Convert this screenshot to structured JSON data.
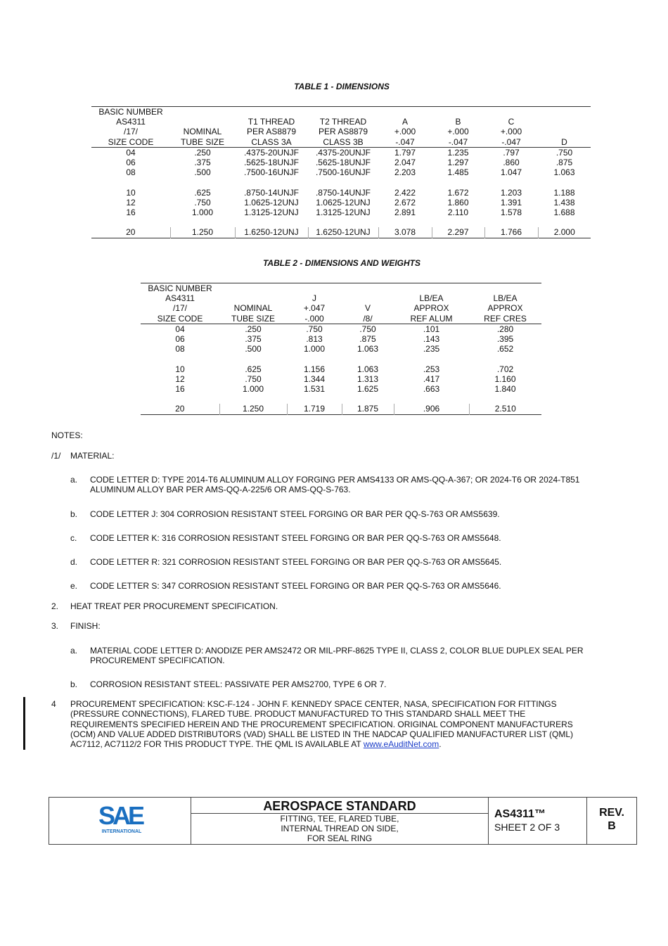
{
  "table1": {
    "title": "TABLE 1 - DIMENSIONS",
    "headers": [
      [
        "BASIC NUMBER",
        "",
        "",
        "",
        "",
        "",
        "",
        ""
      ],
      [
        "AS4311",
        "",
        "T1 THREAD",
        "T2 THREAD",
        "A",
        "B",
        "C",
        ""
      ],
      [
        "/17/",
        "NOMINAL",
        "PER AS8879",
        "PER AS8879",
        "+.000",
        "+.000",
        "+.000",
        ""
      ],
      [
        "SIZE CODE",
        "TUBE SIZE",
        "CLASS 3A",
        "CLASS 3B",
        "-.047",
        "-.047",
        "-.047",
        "D"
      ]
    ],
    "rows": [
      [
        "04",
        ".250",
        ".4375-20UNJF",
        ".4375-20UNJF",
        "1.797",
        "1.235",
        ".797",
        ".750"
      ],
      [
        "06",
        ".375",
        ".5625-18UNJF",
        ".5625-18UNJF",
        "2.047",
        "1.297",
        ".860",
        ".875"
      ],
      [
        "08",
        ".500",
        ".7500-16UNJF",
        ".7500-16UNJF",
        "2.203",
        "1.485",
        "1.047",
        "1.063"
      ],
      null,
      [
        "10",
        ".625",
        ".8750-14UNJF",
        ".8750-14UNJF",
        "2.422",
        "1.672",
        "1.203",
        "1.188"
      ],
      [
        "12",
        ".750",
        "1.0625-12UNJ",
        "1.0625-12UNJ",
        "2.672",
        "1.860",
        "1.391",
        "1.438"
      ],
      [
        "16",
        "1.000",
        "1.3125-12UNJ",
        "1.3125-12UNJ",
        "2.891",
        "2.110",
        "1.578",
        "1.688"
      ],
      null,
      [
        "20",
        "1.250",
        "1.6250-12UNJ",
        "1.6250-12UNJ",
        "3.078",
        "2.297",
        "1.766",
        "2.000"
      ]
    ]
  },
  "table2": {
    "title": "TABLE 2 - DIMENSIONS AND WEIGHTS",
    "headers": [
      [
        "BASIC NUMBER",
        "",
        "",
        "",
        "",
        ""
      ],
      [
        "AS4311",
        "",
        "J",
        "",
        "LB/EA",
        "LB/EA"
      ],
      [
        "/17/",
        "NOMINAL",
        "+.047",
        "V",
        "APPROX",
        "APPROX"
      ],
      [
        "SIZE CODE",
        "TUBE SIZE",
        "-.000",
        "/8/",
        "REF ALUM",
        "REF CRES"
      ]
    ],
    "rows": [
      [
        "04",
        ".250",
        ".750",
        ".750",
        ".101",
        ".280"
      ],
      [
        "06",
        ".375",
        ".813",
        ".875",
        ".143",
        ".395"
      ],
      [
        "08",
        ".500",
        "1.000",
        "1.063",
        ".235",
        ".652"
      ],
      null,
      [
        "10",
        ".625",
        "1.156",
        "1.063",
        ".253",
        ".702"
      ],
      [
        "12",
        ".750",
        "1.344",
        "1.313",
        ".417",
        "1.160"
      ],
      [
        "16",
        "1.000",
        "1.531",
        "1.625",
        ".663",
        "1.840"
      ],
      null,
      [
        "20",
        "1.250",
        "1.719",
        "1.875",
        ".906",
        "2.510"
      ]
    ]
  },
  "notes": {
    "heading": "NOTES:",
    "n1": {
      "num": "/1/",
      "text": "MATERIAL:"
    },
    "n1_items": [
      {
        "letter": "a.",
        "lines": [
          "CODE LETTER D: TYPE 2014-T6 ALUMINUM ALLOY FORGING PER AMS4133 OR AMS-QQ-A-367; OR 2024-T6 OR 2024-T851",
          "ALUMINUM ALLOY BAR PER AMS-QQ-A-225/6 OR AMS-QQ-S-763."
        ]
      },
      {
        "letter": "b.",
        "lines": [
          "CODE LETTER J: 304 CORROSION RESISTANT STEEL FORGING OR BAR PER QQ-S-763 OR AMS5639."
        ]
      },
      {
        "letter": "c.",
        "lines": [
          "CODE LETTER K: 316 CORROSION RESISTANT STEEL FORGING OR BAR PER QQ-S-763 OR AMS5648."
        ]
      },
      {
        "letter": "d.",
        "lines": [
          "CODE LETTER R: 321 CORROSION RESISTANT STEEL FORGING OR BAR PER QQ-S-763 OR AMS5645."
        ]
      },
      {
        "letter": "e.",
        "lines": [
          "CODE LETTER S: 347 CORROSION RESISTANT STEEL FORGING OR BAR PER QQ-S-763 OR AMS5646."
        ]
      }
    ],
    "n2": {
      "num": "2.",
      "text": "HEAT TREAT PER PROCUREMENT SPECIFICATION."
    },
    "n3": {
      "num": "3.",
      "text": "FINISH:"
    },
    "n3_items": [
      {
        "letter": "a.",
        "lines": [
          "MATERIAL CODE LETTER D: ANODIZE PER AMS2472 OR MIL-PRF-8625 TYPE II, CLASS 2, COLOR BLUE DUPLEX SEAL PER",
          "PROCUREMENT SPECIFICATION."
        ]
      },
      {
        "letter": "b.",
        "lines": [
          "CORROSION RESISTANT STEEL: PASSIVATE PER AMS2700, TYPE 6 OR 7."
        ]
      }
    ],
    "n4": {
      "num": "4",
      "lines": [
        "PROCUREMENT SPECIFICATION: KSC-F-124 - JOHN F. KENNEDY SPACE CENTER, NASA, SPECIFICATION FOR FITTINGS",
        "(PRESSURE CONNECTIONS), FLARED TUBE. PRODUCT MANUFACTURED TO THIS STANDARD SHALL MEET THE",
        "REQUIREMENTS SPECIFIED HEREIN AND THE PROCUREMENT SPECIFICATION. ORIGINAL COMPONENT MANUFACTURERS",
        "(OCM) AND VALUE ADDED DISTRIBUTORS (VAD) SHALL BE LISTED IN THE NADCAP QUALIFIED MANUFACTURER LIST (QML)"
      ],
      "last_line": "AC7112, AC7112/2 FOR THIS PRODUCT TYPE. THE QML IS AVAILABLE AT ",
      "link": "www.eAuditNet.com",
      "trailing": "."
    }
  },
  "title_block": {
    "logo_text": "SAE",
    "logo_sub": "INTERNATIONAL",
    "logo_color": "#1a6fc0",
    "heading": "AEROSPACE STANDARD",
    "desc": [
      "FITTING, TEE, FLARED TUBE,",
      "INTERNAL THREAD ON SIDE,",
      "FOR SEAL RING"
    ],
    "doc_number": "AS4311™",
    "sheet": "SHEET 2 OF 3",
    "rev_label": "REV.",
    "rev": "B"
  }
}
